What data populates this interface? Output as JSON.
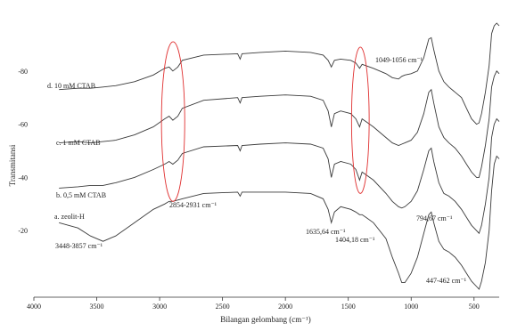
{
  "chart_data": {
    "type": "line",
    "title": "",
    "xlabel": "Bilangan gelombang (cm⁻¹)",
    "ylabel": "Transmitansi",
    "x_reversed": true,
    "xlim": [
      4000,
      300
    ],
    "ylim": [
      -5,
      100
    ],
    "x_ticks": [
      4000,
      3500,
      3000,
      2500,
      2000,
      1500,
      1000,
      500
    ],
    "x_tick_labels": [
      "4000",
      "3500",
      "3000",
      "2500",
      "2000",
      "1500",
      "1000",
      "500"
    ],
    "y_ticks": [
      20,
      40,
      60,
      80
    ],
    "y_tick_labels": [
      "-20",
      "-40",
      "-60",
      "-80"
    ],
    "grid": false,
    "line_color": "#3a3a3a",
    "highlight_color": "#e03030",
    "series": [
      {
        "name": "d. 10 mM CTAB",
        "x": [
          3800,
          3650,
          3550,
          3450,
          3350,
          3200,
          3050,
          2960,
          2925,
          2895,
          2855,
          2820,
          2650,
          2380,
          2360,
          2345,
          2200,
          2000,
          1800,
          1700,
          1660,
          1635,
          1610,
          1560,
          1480,
          1440,
          1410,
          1390,
          1360,
          1300,
          1200,
          1150,
          1100,
          1075,
          1050,
          1000,
          950,
          900,
          860,
          840,
          820,
          780,
          740,
          700,
          650,
          600,
          560,
          520,
          480,
          460,
          440,
          410,
          380,
          360,
          340,
          320,
          300
        ],
        "y": [
          73,
          73.5,
          73.5,
          74,
          74.5,
          76,
          78.5,
          81,
          81.5,
          80,
          81.5,
          84,
          86,
          86.5,
          84.5,
          86.5,
          87,
          87.5,
          87,
          86,
          84,
          81.5,
          84,
          84.5,
          84,
          83,
          81,
          82.5,
          82,
          81,
          79,
          77.5,
          77,
          78,
          78.5,
          79,
          80,
          85,
          92,
          92.5,
          88,
          80,
          76,
          74,
          72,
          70,
          66,
          62,
          60,
          60.5,
          64,
          72,
          82,
          94,
          97,
          98,
          97
        ]
      },
      {
        "name": "c. 1 mM CTAB",
        "x": [
          3800,
          3650,
          3550,
          3450,
          3350,
          3200,
          3050,
          2960,
          2925,
          2895,
          2855,
          2820,
          2650,
          2380,
          2360,
          2345,
          2200,
          2000,
          1800,
          1700,
          1660,
          1635,
          1610,
          1560,
          1480,
          1440,
          1410,
          1390,
          1360,
          1300,
          1200,
          1150,
          1100,
          1075,
          1050,
          1000,
          950,
          900,
          860,
          840,
          820,
          780,
          740,
          700,
          650,
          600,
          560,
          520,
          480,
          460,
          440,
          410,
          380,
          360,
          340,
          320,
          300
        ],
        "y": [
          53,
          53.5,
          53,
          53.5,
          54,
          56,
          59,
          62,
          63,
          61.5,
          63,
          66,
          69,
          70,
          68,
          70,
          70.5,
          71,
          70.5,
          69,
          65,
          59,
          64,
          65,
          64,
          62,
          59,
          62,
          61,
          59,
          55,
          53,
          52,
          52.5,
          53,
          54,
          57,
          64,
          72,
          73,
          68,
          59,
          55,
          53,
          51,
          48,
          45,
          42,
          40,
          40,
          44,
          52,
          62,
          74,
          78,
          80,
          79
        ]
      },
      {
        "name": "b. 0,5 mM CTAB",
        "x": [
          3800,
          3650,
          3550,
          3450,
          3350,
          3200,
          3050,
          2960,
          2925,
          2895,
          2855,
          2820,
          2650,
          2380,
          2360,
          2345,
          2200,
          2000,
          1800,
          1700,
          1660,
          1635,
          1610,
          1560,
          1480,
          1440,
          1410,
          1390,
          1360,
          1300,
          1200,
          1150,
          1100,
          1075,
          1050,
          1000,
          950,
          900,
          860,
          840,
          820,
          780,
          740,
          700,
          650,
          600,
          560,
          520,
          480,
          460,
          440,
          410,
          380,
          360,
          340,
          320,
          300
        ],
        "y": [
          36,
          36.5,
          37,
          37,
          38,
          40,
          43,
          45,
          46,
          45,
          46.5,
          49,
          51.5,
          52,
          50,
          52,
          52.5,
          53,
          52.5,
          51,
          47,
          40,
          45,
          46,
          45,
          43,
          39,
          42,
          41,
          39,
          34,
          31,
          29,
          28.5,
          29,
          31,
          35,
          43,
          50,
          51,
          46,
          38,
          34,
          33,
          31,
          28,
          25,
          22,
          20,
          19,
          22,
          30,
          40,
          55,
          60,
          62,
          61
        ]
      },
      {
        "name": "a. zeolit-H",
        "x": [
          3800,
          3650,
          3550,
          3450,
          3350,
          3200,
          3050,
          2960,
          2925,
          2895,
          2855,
          2820,
          2650,
          2380,
          2360,
          2345,
          2200,
          2000,
          1800,
          1700,
          1660,
          1635,
          1610,
          1560,
          1480,
          1440,
          1410,
          1390,
          1360,
          1300,
          1200,
          1150,
          1100,
          1075,
          1050,
          1000,
          950,
          900,
          860,
          840,
          820,
          780,
          740,
          700,
          650,
          600,
          560,
          520,
          480,
          460,
          440,
          410,
          380,
          360,
          340,
          320,
          300
        ],
        "y": [
          23,
          21,
          18,
          16,
          18,
          23,
          28,
          30,
          31,
          31,
          31.5,
          32,
          34,
          34.5,
          33,
          34.5,
          34.5,
          34.5,
          34,
          32,
          28,
          23,
          27,
          29,
          28,
          27,
          26,
          26,
          25,
          23,
          17,
          10,
          4,
          0.5,
          0.5,
          4,
          10,
          19,
          26,
          27,
          23,
          16,
          13,
          12,
          10,
          7,
          4,
          1,
          -1,
          -2,
          1,
          8,
          20,
          35,
          45,
          48,
          47
        ]
      }
    ],
    "series_labels": [
      "d. 10 mM CTAB",
      "c. 1 mM CTAB",
      "b. 0,5 mM CTAB",
      "a. zeolit-H"
    ],
    "annotations": [
      "2854-2931 cm⁻¹",
      "3448-3857 cm⁻¹",
      "1635,64 cm⁻¹",
      "1404,18 cm⁻¹",
      "1049-1056 cm⁻¹",
      "794,67 cm⁻¹",
      "447-462 cm⁻¹"
    ],
    "highlight_regions": [
      {
        "x_center": 2893,
        "x_width": 185,
        "y_range": [
          31,
          91
        ]
      },
      {
        "x_center": 1404,
        "x_width": 140,
        "y_range": [
          34,
          89
        ]
      }
    ]
  }
}
